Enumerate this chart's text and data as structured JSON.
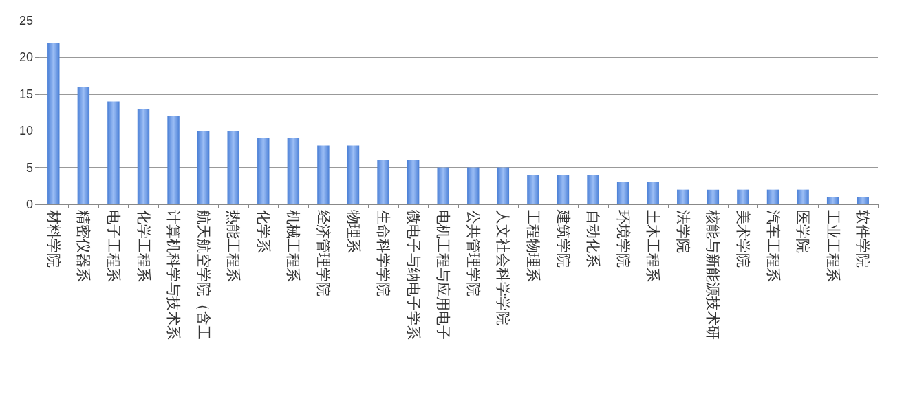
{
  "chart_data": {
    "type": "bar",
    "categories": [
      "材料学院",
      "精密仪器系",
      "电子工程系",
      "化学工程系",
      "计算机科学与技术系",
      "航天航空学院（含工",
      "热能工程系",
      "化学系",
      "机械工程系",
      "经济管理学院",
      "物理系",
      "生命科学学院",
      "微电子与纳电子学系",
      "电机工程与应用电子",
      "公共管理学院",
      "人文社会科学学院",
      "工程物理系",
      "建筑学院",
      "自动化系",
      "环境学院",
      "土木工程系",
      "法学院",
      "核能与新能源技术研",
      "美术学院",
      "汽车工程系",
      "医学院",
      "工业工程系",
      "软件学院"
    ],
    "values": [
      22,
      16,
      14,
      13,
      12,
      10,
      10,
      9,
      9,
      8,
      8,
      6,
      6,
      5,
      5,
      5,
      4,
      4,
      4,
      3,
      3,
      2,
      2,
      2,
      2,
      2,
      1,
      1
    ],
    "color": "#4a7fd6",
    "ylim": [
      0,
      25
    ],
    "yticks": [
      0,
      5,
      10,
      15,
      20,
      25
    ],
    "grid": "y"
  }
}
